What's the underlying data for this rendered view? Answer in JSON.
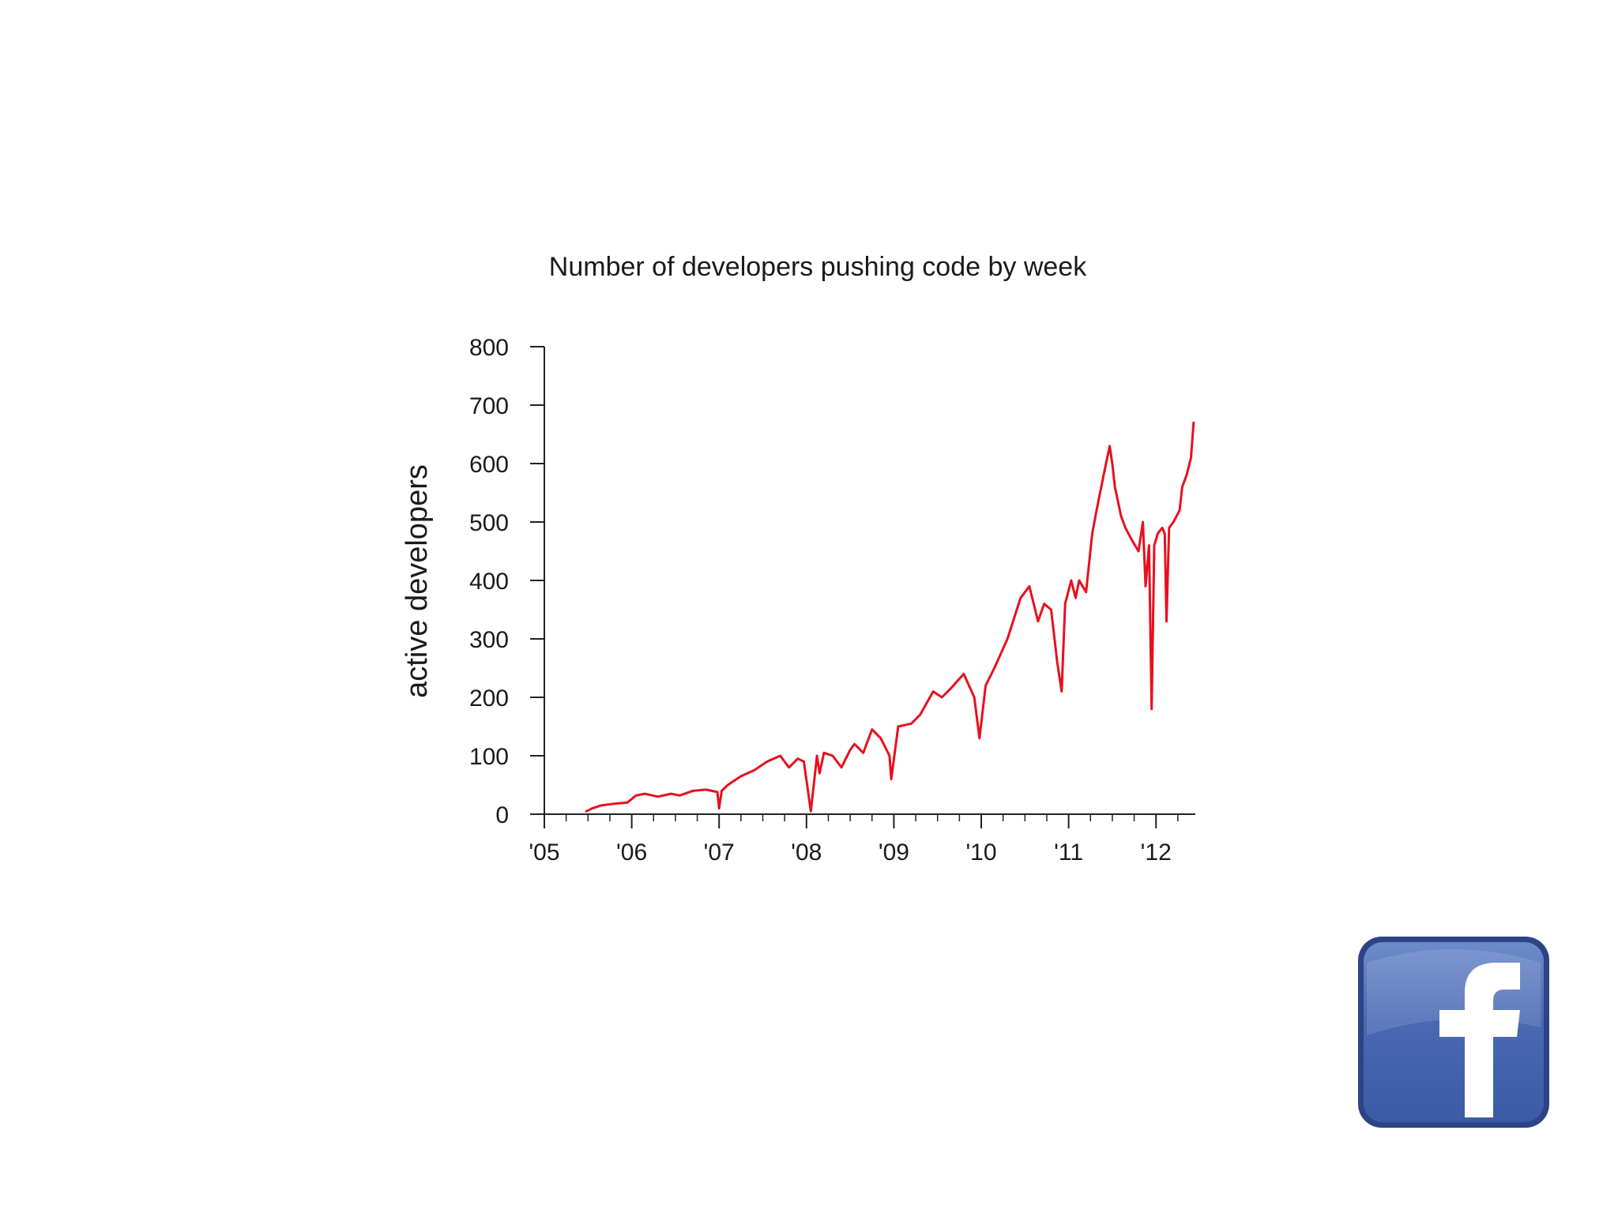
{
  "chart_data": {
    "type": "line",
    "title": "Number of developers pushing code by week",
    "xlabel": "",
    "ylabel": "active developers",
    "xlim": [
      2005.0,
      2012.45
    ],
    "ylim": [
      0,
      800
    ],
    "y_ticks": [
      0,
      100,
      200,
      300,
      400,
      500,
      600,
      700,
      800
    ],
    "x_ticks": [
      {
        "value": 2005,
        "label": "'05"
      },
      {
        "value": 2006,
        "label": "'06"
      },
      {
        "value": 2007,
        "label": "'07"
      },
      {
        "value": 2008,
        "label": "'08"
      },
      {
        "value": 2009,
        "label": "'09"
      },
      {
        "value": 2010,
        "label": "'10"
      },
      {
        "value": 2011,
        "label": "'11"
      },
      {
        "value": 2012,
        "label": "'12"
      }
    ],
    "grid": false,
    "series": [
      {
        "color": "#e8101e",
        "x": [
          2005.48,
          2005.55,
          2005.65,
          2005.8,
          2005.95,
          2006.05,
          2006.15,
          2006.3,
          2006.45,
          2006.55,
          2006.7,
          2006.85,
          2006.98,
          2007.0,
          2007.03,
          2007.1,
          2007.25,
          2007.4,
          2007.55,
          2007.7,
          2007.8,
          2007.9,
          2007.97,
          2008.05,
          2008.12,
          2008.15,
          2008.2,
          2008.3,
          2008.4,
          2008.5,
          2008.55,
          2008.65,
          2008.75,
          2008.85,
          2008.95,
          2008.97,
          2009.05,
          2009.2,
          2009.3,
          2009.45,
          2009.55,
          2009.65,
          2009.8,
          2009.92,
          2009.98,
          2010.05,
          2010.15,
          2010.3,
          2010.45,
          2010.55,
          2010.65,
          2010.72,
          2010.8,
          2010.87,
          2010.92,
          2010.96,
          2011.03,
          2011.08,
          2011.12,
          2011.2,
          2011.27,
          2011.32,
          2011.4,
          2011.47,
          2011.5,
          2011.53,
          2011.6,
          2011.65,
          2011.72,
          2011.8,
          2011.85,
          2011.88,
          2011.92,
          2011.95,
          2011.98,
          2012.02,
          2012.07,
          2012.1,
          2012.12,
          2012.15,
          2012.2,
          2012.27,
          2012.3,
          2012.35,
          2012.4,
          2012.43
        ],
        "y": [
          5,
          10,
          15,
          18,
          20,
          32,
          35,
          30,
          35,
          32,
          40,
          42,
          38,
          10,
          40,
          50,
          65,
          75,
          90,
          100,
          80,
          95,
          90,
          5,
          100,
          70,
          105,
          100,
          80,
          110,
          120,
          105,
          145,
          130,
          100,
          60,
          150,
          155,
          170,
          210,
          200,
          215,
          240,
          200,
          130,
          220,
          250,
          300,
          370,
          390,
          330,
          360,
          350,
          260,
          210,
          360,
          400,
          370,
          400,
          380,
          480,
          520,
          580,
          630,
          600,
          560,
          510,
          490,
          470,
          450,
          500,
          390,
          460,
          180,
          460,
          480,
          490,
          480,
          330,
          490,
          500,
          520,
          560,
          580,
          610,
          670
        ]
      }
    ]
  },
  "logo": {
    "icon": "facebook-logo-icon",
    "letter": "f",
    "colors": {
      "fill": "#3b5ba7",
      "highlight": "#6e8bc9",
      "border": "#2c4486",
      "letter": "#ffffff"
    }
  }
}
